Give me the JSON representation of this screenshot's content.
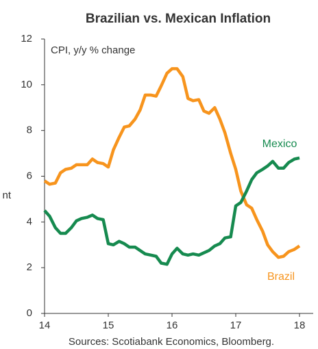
{
  "chart_data": {
    "type": "line",
    "title": "Brazilian vs. Mexican Inflation",
    "annotation": "CPI, y/y % change",
    "side_label": "nt",
    "source": "Sources: Scotiabank Economics, Bloomberg.",
    "x": [
      14,
      14.08,
      14.17,
      14.25,
      14.33,
      14.42,
      14.5,
      14.58,
      14.67,
      14.75,
      14.83,
      14.92,
      15,
      15.08,
      15.17,
      15.25,
      15.33,
      15.42,
      15.5,
      15.58,
      15.67,
      15.75,
      15.83,
      15.92,
      16,
      16.08,
      16.17,
      16.25,
      16.33,
      16.42,
      16.5,
      16.58,
      16.67,
      16.75,
      16.83,
      16.92,
      17,
      17.08,
      17.17,
      17.25,
      17.33,
      17.42,
      17.5,
      17.58,
      17.67,
      17.75,
      17.83,
      17.92,
      18
    ],
    "series": [
      {
        "name": "Brazil",
        "color": "#f7941d",
        "values": [
          5.8,
          5.65,
          5.7,
          6.15,
          6.3,
          6.35,
          6.5,
          6.5,
          6.5,
          6.75,
          6.6,
          6.55,
          6.4,
          7.15,
          7.7,
          8.15,
          8.2,
          8.5,
          8.9,
          9.55,
          9.55,
          9.5,
          9.95,
          10.5,
          10.7,
          10.7,
          10.35,
          9.4,
          9.3,
          9.35,
          8.85,
          8.75,
          9.0,
          8.5,
          7.9,
          7.0,
          6.3,
          5.35,
          4.75,
          4.6,
          4.1,
          3.6,
          3.0,
          2.7,
          2.45,
          2.5,
          2.7,
          2.8,
          2.95
        ]
      },
      {
        "name": "Mexico",
        "color": "#168a4f",
        "values": [
          4.5,
          4.25,
          3.75,
          3.5,
          3.5,
          3.75,
          4.05,
          4.15,
          4.2,
          4.3,
          4.15,
          4.1,
          3.05,
          3.0,
          3.15,
          3.05,
          2.9,
          2.9,
          2.75,
          2.6,
          2.55,
          2.5,
          2.2,
          2.15,
          2.6,
          2.85,
          2.6,
          2.55,
          2.6,
          2.55,
          2.65,
          2.75,
          2.95,
          3.05,
          3.3,
          3.35,
          4.7,
          4.85,
          5.35,
          5.85,
          6.15,
          6.3,
          6.45,
          6.65,
          6.35,
          6.35,
          6.6,
          6.75,
          6.8
        ]
      }
    ],
    "xlim": [
      14,
      18
    ],
    "xticks": [
      14,
      15,
      16,
      17,
      18
    ],
    "ylim": [
      0,
      12
    ],
    "yticks": [
      0,
      2,
      4,
      6,
      8,
      10,
      12
    ]
  }
}
